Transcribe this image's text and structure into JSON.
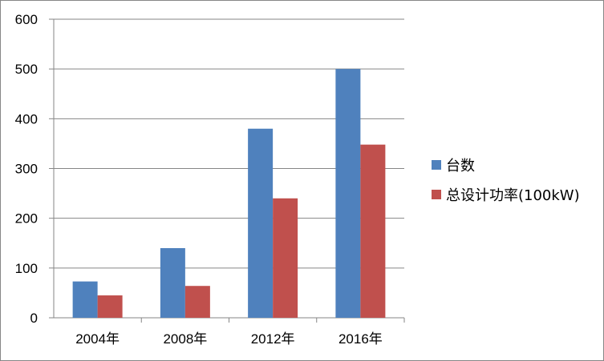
{
  "chart_data": {
    "type": "bar",
    "categories": [
      "2004年",
      "2008年",
      "2012年",
      "2016年"
    ],
    "series": [
      {
        "name": "台数",
        "values": [
          73,
          140,
          380,
          500
        ],
        "color": "#4F81BD"
      },
      {
        "name": "总设计功率(100kW)",
        "values": [
          45,
          64,
          240,
          348
        ],
        "color": "#C0504D"
      }
    ],
    "ylim": [
      0,
      600
    ],
    "yticks": [
      0,
      100,
      200,
      300,
      400,
      500,
      600
    ],
    "grid": true,
    "legend_position": "right"
  }
}
